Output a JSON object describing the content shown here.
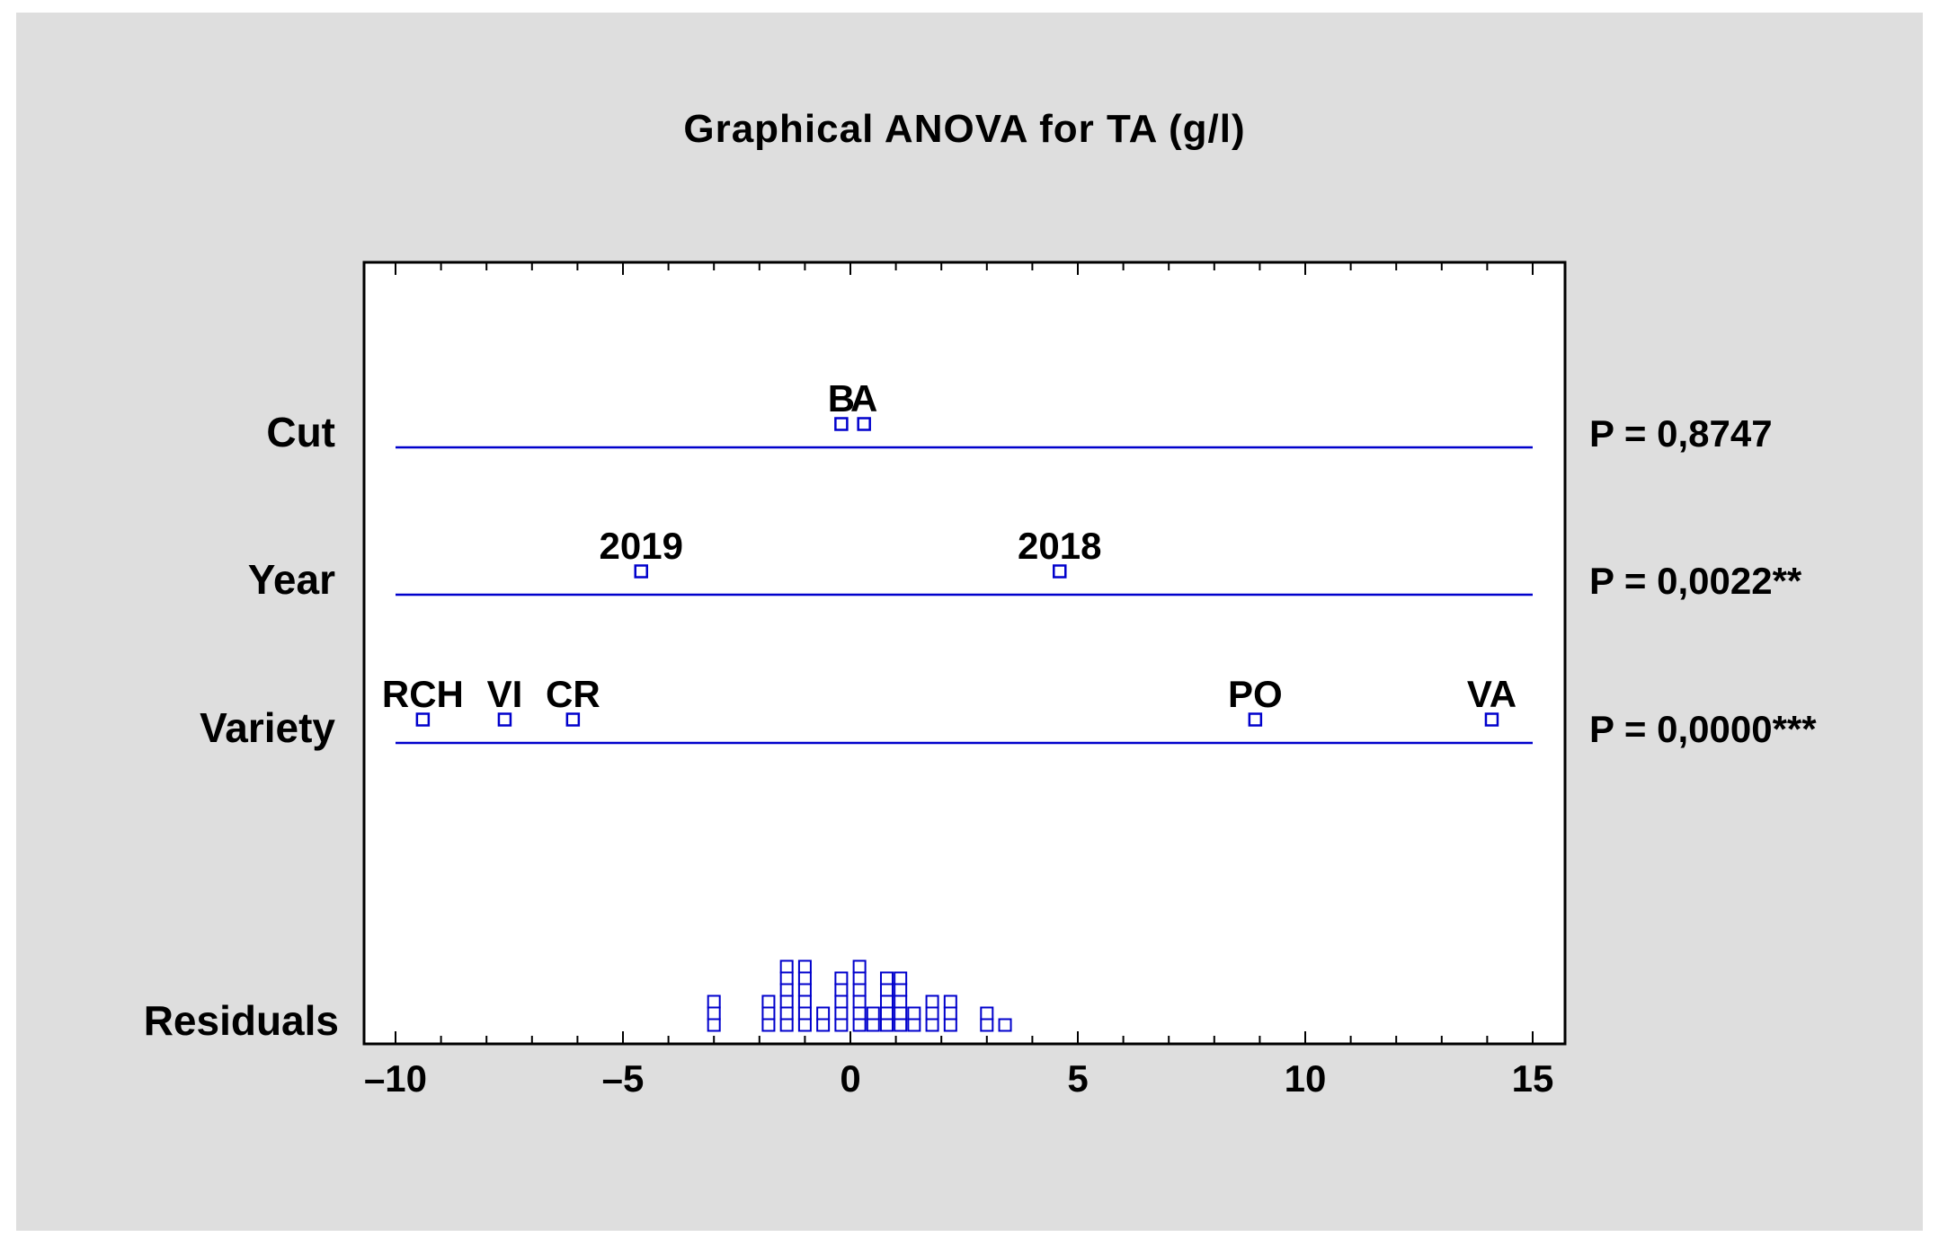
{
  "chart_data": {
    "type": "scatter",
    "title": "Graphical ANOVA for TA (g/l)",
    "xlim": [
      -10,
      15
    ],
    "x_ticks": [
      {
        "value": -10,
        "label": "–10"
      },
      {
        "value": -5,
        "label": "–5"
      },
      {
        "value": 0,
        "label": "0"
      },
      {
        "value": 5,
        "label": "5"
      },
      {
        "value": 10,
        "label": "10"
      },
      {
        "value": 15,
        "label": "15"
      }
    ],
    "rows": [
      {
        "name": "Cut",
        "p_value": "P = 0,8747",
        "points": [
          {
            "label": "B",
            "x": -0.2
          },
          {
            "label": "A",
            "x": 0.3
          }
        ]
      },
      {
        "name": "Year",
        "p_value": "P = 0,0022**",
        "points": [
          {
            "label": "2019",
            "x": -4.6
          },
          {
            "label": "2018",
            "x": 4.6
          }
        ]
      },
      {
        "name": "Variety",
        "p_value": "P = 0,0000***",
        "points": [
          {
            "label": "RCH",
            "x": -9.4
          },
          {
            "label": "VI",
            "x": -7.6
          },
          {
            "label": "CR",
            "x": -6.1
          },
          {
            "label": "PO",
            "x": 8.9
          },
          {
            "label": "VA",
            "x": 14.1
          }
        ]
      }
    ],
    "residuals": {
      "name": "Residuals",
      "columns": [
        {
          "x": -3.0,
          "count": 3
        },
        {
          "x": -1.8,
          "count": 3
        },
        {
          "x": -1.4,
          "count": 6
        },
        {
          "x": -1.0,
          "count": 6
        },
        {
          "x": -0.6,
          "count": 2
        },
        {
          "x": -0.2,
          "count": 5
        },
        {
          "x": 0.2,
          "count": 6
        },
        {
          "x": 0.5,
          "count": 2
        },
        {
          "x": 0.8,
          "count": 5
        },
        {
          "x": 1.1,
          "count": 5
        },
        {
          "x": 1.4,
          "count": 2
        },
        {
          "x": 1.8,
          "count": 3
        },
        {
          "x": 2.2,
          "count": 3
        },
        {
          "x": 3.0,
          "count": 2
        },
        {
          "x": 3.4,
          "count": 1
        }
      ]
    },
    "grid": false,
    "colors": {
      "background": "#dedede",
      "plot_area": "#ffffff",
      "line": "#0000cc",
      "marker": "#0000cc"
    }
  }
}
